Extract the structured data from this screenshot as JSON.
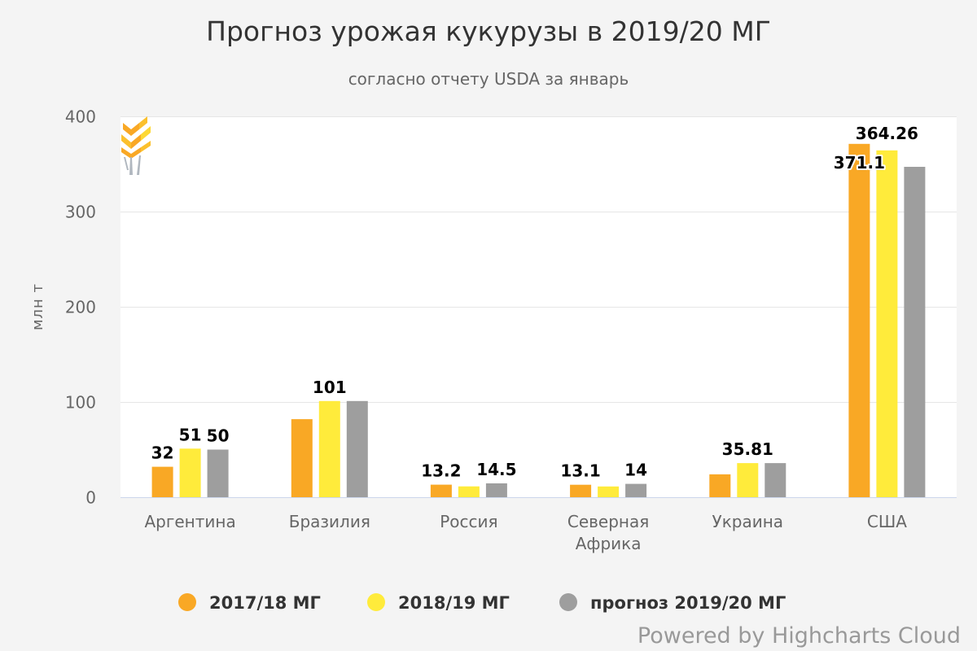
{
  "chart_data": {
    "type": "bar",
    "title": "Прогноз урожая кукурузы в 2019/20 МГ",
    "subtitle": "согласно отчету USDA за январь",
    "ylabel": "млн т",
    "ylim": [
      0,
      400
    ],
    "yticks": [
      "0",
      "100",
      "200",
      "300",
      "400"
    ],
    "categories": [
      [
        "Аргентина"
      ],
      [
        "Бразилия"
      ],
      [
        "Россия"
      ],
      [
        "Северная",
        "Африка"
      ],
      [
        "Украина"
      ],
      [
        "США"
      ]
    ],
    "series": [
      {
        "name": "2017/18 МГ",
        "color": "#f9a825",
        "values": [
          32,
          82,
          13.2,
          13.1,
          24,
          371.1
        ],
        "labels": [
          "32",
          "",
          "13.2",
          "13.1",
          "",
          "371.1"
        ]
      },
      {
        "name": "2018/19 МГ",
        "color": "#ffeb3b",
        "values": [
          51,
          101,
          11.4,
          11.3,
          35.81,
          364.26
        ],
        "labels": [
          "51",
          "101",
          "",
          "",
          "35.81",
          "364.26"
        ]
      },
      {
        "name": "прогноз 2019/20 МГ",
        "color": "#9e9e9e",
        "values": [
          50,
          101,
          14.5,
          14,
          35.81,
          347
        ],
        "labels": [
          "50",
          "",
          "14.5",
          "14",
          "",
          ""
        ]
      }
    ],
    "grid": true,
    "legend_position": "bottom-center",
    "credits": "Powered by Highcharts Cloud"
  }
}
